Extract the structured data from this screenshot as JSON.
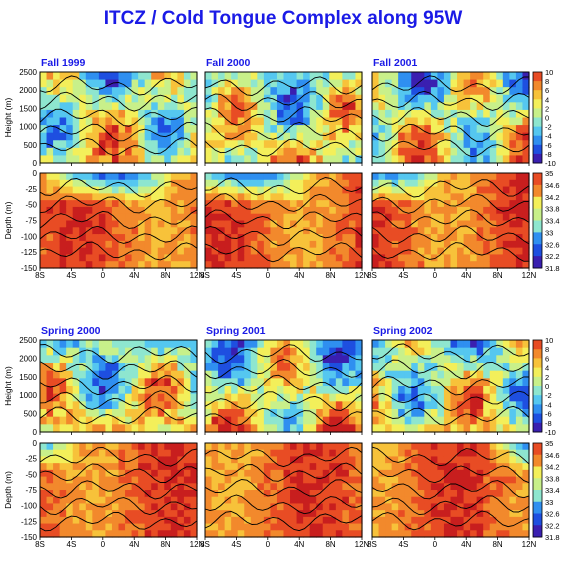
{
  "title": "ITCZ / Cold Tongue Complex along 95W",
  "colors": {
    "title": "#1a1ae6",
    "palette": [
      "#3a1fb0",
      "#1e4fe0",
      "#2f8ff0",
      "#55c7f0",
      "#8ee6cf",
      "#c8f08a",
      "#f3ef5a",
      "#f7c23a",
      "#f2892c",
      "#e84c24",
      "#c81e1e"
    ]
  },
  "chart_data": [
    {
      "type": "heatmap",
      "season": "Fall 1999",
      "rows": [
        {
          "ylabel": "Height (m)",
          "ylim": [
            0,
            2500
          ],
          "yticks": [
            0,
            500,
            1000,
            1500,
            2000,
            2500
          ],
          "colorscale": "anomaly"
        },
        {
          "ylabel": "Depth (m)",
          "ylim": [
            -150,
            0
          ],
          "yticks": [
            0,
            -25,
            -50,
            -75,
            -100,
            -125,
            -150
          ],
          "colorscale": "salinity"
        }
      ],
      "xticks": [
        "8S",
        "4S",
        "0",
        "4N",
        "8N",
        "12N"
      ],
      "xlim": [
        -8,
        12
      ]
    },
    {
      "type": "heatmap",
      "season": "Fall 2000",
      "rows": [
        {
          "ylabel": "",
          "ylim": [
            0,
            2500
          ],
          "colorscale": "anomaly"
        },
        {
          "ylabel": "",
          "ylim": [
            -150,
            0
          ],
          "colorscale": "salinity"
        }
      ],
      "xticks": [
        "8S",
        "4S",
        "0",
        "4N",
        "8N",
        "12N"
      ],
      "xlim": [
        -8,
        12
      ]
    },
    {
      "type": "heatmap",
      "season": "Fall 2001",
      "rows": [
        {
          "ylabel": "",
          "ylim": [
            0,
            2500
          ],
          "colorscale": "anomaly"
        },
        {
          "ylabel": "",
          "ylim": [
            -150,
            0
          ],
          "colorscale": "salinity"
        }
      ],
      "xticks": [
        "8S",
        "4S",
        "0",
        "4N",
        "8N",
        "12N"
      ],
      "xlim": [
        -8,
        12
      ]
    },
    {
      "type": "heatmap",
      "season": "Spring 2000",
      "rows": [
        {
          "ylabel": "Height (m)",
          "ylim": [
            0,
            2500
          ],
          "yticks": [
            0,
            500,
            1000,
            1500,
            2000,
            2500
          ],
          "colorscale": "anomaly"
        },
        {
          "ylabel": "Depth (m)",
          "ylim": [
            -150,
            0
          ],
          "yticks": [
            0,
            -25,
            -50,
            -75,
            -100,
            -125,
            -150
          ],
          "colorscale": "salinity"
        }
      ],
      "xticks": [
        "8S",
        "4S",
        "0",
        "4N",
        "8N",
        "12N"
      ],
      "xlim": [
        -8,
        12
      ]
    },
    {
      "type": "heatmap",
      "season": "Spring 2001",
      "rows": [
        {
          "ylabel": "",
          "ylim": [
            0,
            2500
          ],
          "colorscale": "anomaly"
        },
        {
          "ylabel": "",
          "ylim": [
            -150,
            0
          ],
          "colorscale": "salinity"
        }
      ],
      "xticks": [
        "8S",
        "4S",
        "0",
        "4N",
        "8N",
        "12N"
      ],
      "xlim": [
        -8,
        12
      ]
    },
    {
      "type": "heatmap",
      "season": "Spring 2002",
      "rows": [
        {
          "ylabel": "",
          "ylim": [
            0,
            2500
          ],
          "colorscale": "anomaly"
        },
        {
          "ylabel": "",
          "ylim": [
            -150,
            0
          ],
          "colorscale": "salinity"
        }
      ],
      "xticks": [
        "8S",
        "4S",
        "0",
        "4N",
        "8N",
        "12N"
      ],
      "xlim": [
        -8,
        12
      ]
    }
  ],
  "colorbars": {
    "anomaly": [
      "10",
      "8",
      "6",
      "4",
      "2",
      "0",
      "-2",
      "-4",
      "-6",
      "-8",
      "-10"
    ],
    "salinity": [
      "35",
      "34.6",
      "34.2",
      "33.8",
      "33.4",
      "33",
      "32.6",
      "32.2",
      "31.8"
    ]
  },
  "height_ticks": [
    "2500",
    "2000",
    "1500",
    "1000",
    "500",
    "0"
  ],
  "depth_ticks": [
    "0",
    "-25",
    "-50",
    "-75",
    "-100",
    "-125",
    "-150"
  ]
}
